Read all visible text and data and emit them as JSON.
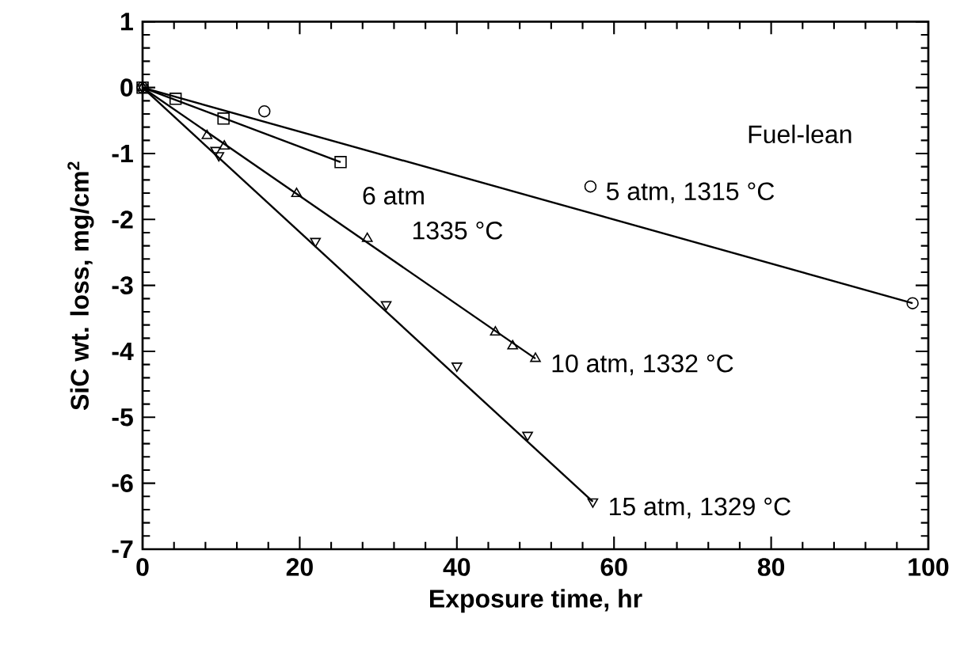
{
  "chart_data": {
    "type": "scatter",
    "xlabel": "Exposure time, hr",
    "ylabel": "SiC wt. loss, mg/cm$^{2}$",
    "xlim": [
      0,
      100
    ],
    "ylim": [
      -7,
      1
    ],
    "xticks": [
      0,
      20,
      40,
      60,
      80,
      100
    ],
    "yticks": [
      -7,
      -6,
      -5,
      -4,
      -3,
      -2,
      -1,
      0,
      1
    ],
    "series": [
      {
        "marker": "circle",
        "color": "#000000",
        "x": [
          0,
          15.5,
          57,
          98
        ],
        "values": [
          0,
          -0.36,
          -1.5,
          -3.27
        ]
      },
      {
        "type": "line",
        "marker": "none",
        "color": "#000000",
        "x": [
          0,
          98
        ],
        "values": [
          0,
          -3.27
        ]
      },
      {
        "marker": "square",
        "color": "#000000",
        "x": [
          0,
          4.2,
          10.3,
          25.2
        ],
        "values": [
          0,
          -0.17,
          -0.47,
          -1.13
        ]
      },
      {
        "type": "line",
        "marker": "none",
        "color": "#000000",
        "x": [
          0,
          25.2
        ],
        "values": [
          0,
          -1.13
        ]
      },
      {
        "marker": "triangle",
        "color": "#000000",
        "x": [
          0,
          8.2,
          10.4,
          19.6,
          28.6,
          44.9,
          47.1,
          50
        ],
        "values": [
          0,
          -0.73,
          -0.89,
          -1.61,
          -2.29,
          -3.71,
          -3.92,
          -4.11
        ]
      },
      {
        "type": "line",
        "marker": "none",
        "color": "#000000",
        "x": [
          0,
          50
        ],
        "values": [
          0,
          -4.11
        ]
      },
      {
        "marker": "triangle down",
        "color": "#000000",
        "x": [
          0,
          9.3,
          9.7,
          22,
          31,
          40,
          49,
          57.3
        ],
        "values": [
          0,
          -0.95,
          -1.03,
          -2.33,
          -3.29,
          -4.22,
          -5.27,
          -6.28
        ]
      },
      {
        "type": "line",
        "marker": "none",
        "color": "#000000",
        "x": [
          0,
          57.3
        ],
        "values": [
          0,
          -6.28
        ]
      }
    ],
    "annotations": [
      "Fuel-lean",
      {
        "text": "5 atm, 1315 °C",
        "x": 57,
        "y": -1.5
      },
      "6 atm",
      "1335 °C",
      {
        "text": "10 atm, 1332 °C",
        "x": 50,
        "y": -4.11
      },
      {
        "text": "15 atm, 1329 °C",
        "x": 57.3,
        "y": -6.28
      }
    ]
  }
}
